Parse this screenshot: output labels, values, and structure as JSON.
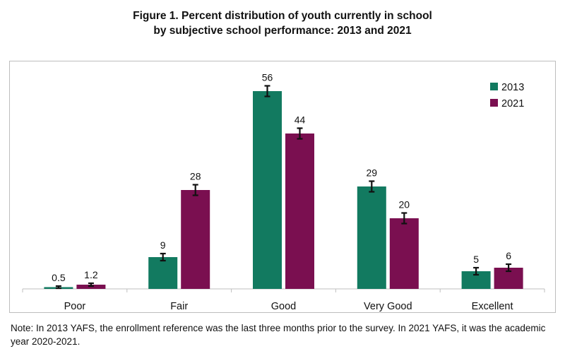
{
  "colors": {
    "s2013": "#127A60",
    "s2021": "#7A0F50",
    "axis": "#bfbfbf",
    "err": "#111111"
  },
  "chart_data": {
    "type": "bar",
    "title": "Figure 1. Percent distribution of youth currently in school by subjective school performance: 2013 and 2021",
    "title_lines": [
      "Figure 1. Percent distribution of youth currently in school",
      "by subjective school performance: 2013 and 2021"
    ],
    "categories": [
      "Poor",
      "Fair",
      "Good",
      "Very Good",
      "Excellent"
    ],
    "series": [
      {
        "name": "2013",
        "values": [
          0.5,
          9,
          56,
          29,
          5
        ],
        "labels": [
          "0.5",
          "9",
          "56",
          "29",
          "5"
        ],
        "errors": [
          0.3,
          1,
          1.5,
          1.5,
          1
        ]
      },
      {
        "name": "2021",
        "values": [
          1.2,
          28,
          44,
          20,
          6
        ],
        "labels": [
          "1.2",
          "28",
          "44",
          "20",
          "6"
        ],
        "errors": [
          0.4,
          1.5,
          1.5,
          1.5,
          1
        ]
      }
    ],
    "ylim": [
      0,
      60
    ],
    "legend": "top-right",
    "grid": false,
    "xlabel": "",
    "ylabel": ""
  },
  "note": "Note: In 2013 YAFS, the enrollment reference was the last three months prior to the survey. In 2021 YAFS, it was the academic year 2020-2021."
}
